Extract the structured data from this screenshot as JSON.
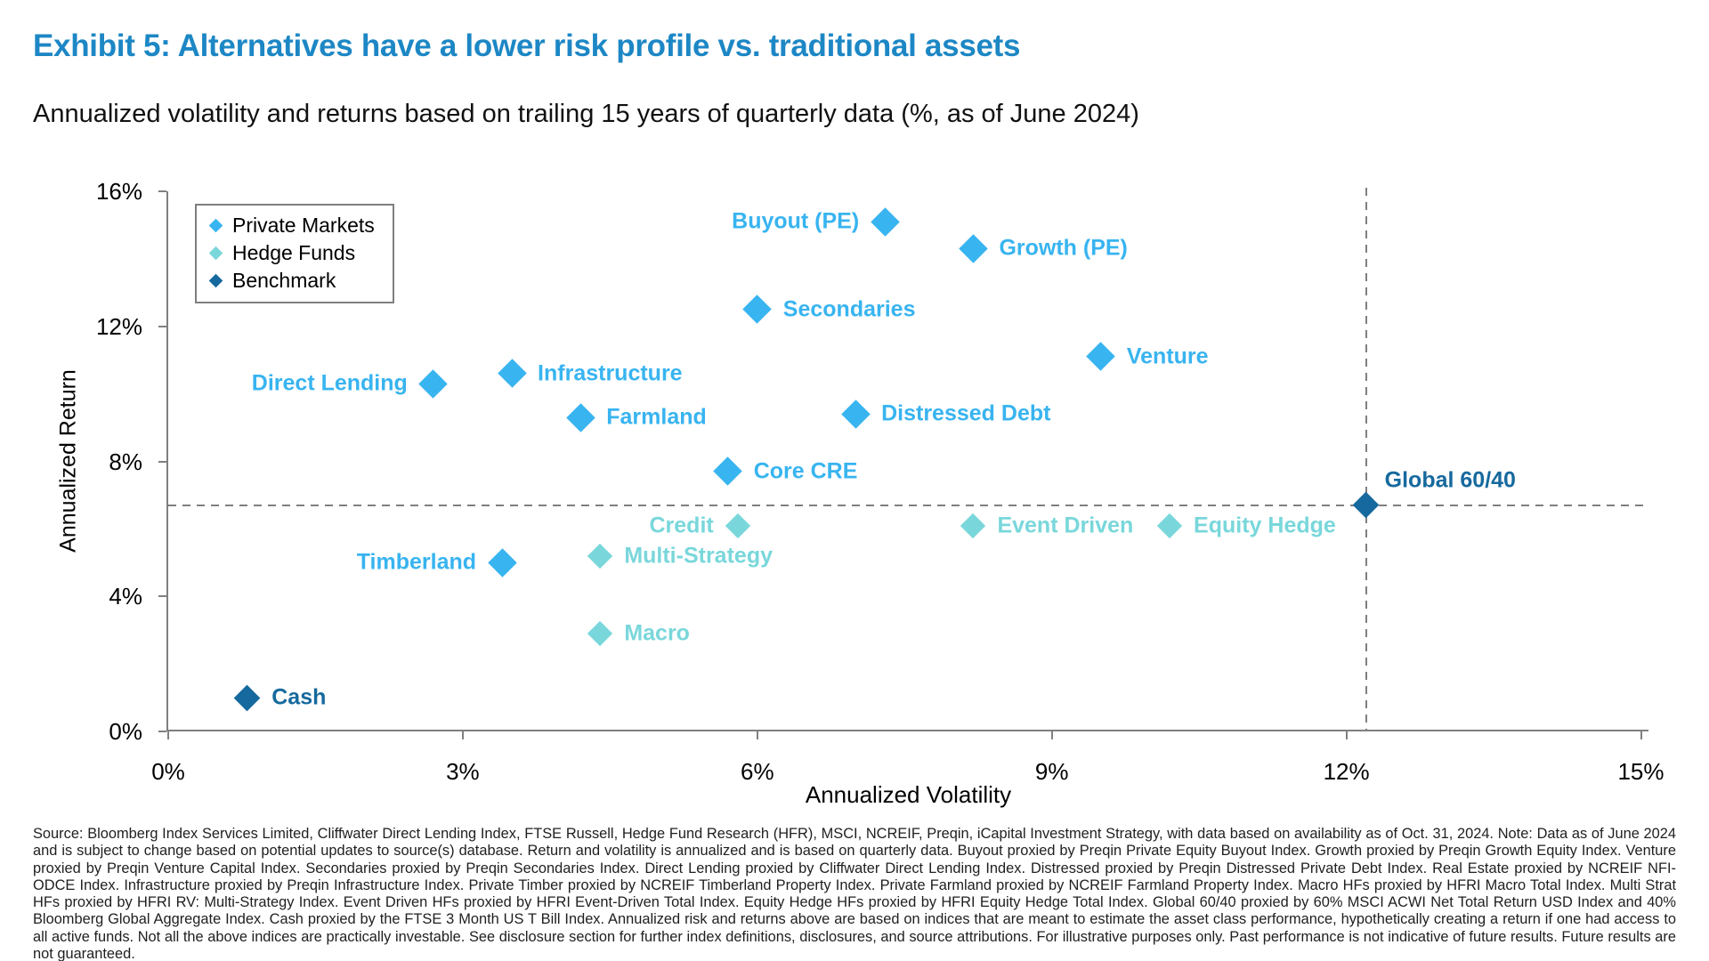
{
  "header": {
    "title": "Exhibit 5: Alternatives have a lower risk profile vs. traditional assets",
    "subtitle": "Annualized volatility and returns based on trailing 15 years of quarterly data (%, as of June 2024)"
  },
  "colors": {
    "title_blue": "#1d87c5",
    "private_markets": "#38b4f0",
    "hedge_funds": "#79d7db",
    "benchmark": "#16699e",
    "axis_gray": "#808080",
    "dashed_gray": "#7f7f7f"
  },
  "legend": {
    "items": [
      {
        "label": "Private Markets"
      },
      {
        "label": "Hedge Funds"
      },
      {
        "label": "Benchmark"
      }
    ]
  },
  "chart_data": {
    "type": "scatter",
    "title": "Exhibit 5: Alternatives have a lower risk profile vs. traditional assets",
    "subtitle": "Annualized volatility and returns based on trailing 15 years of quarterly data (%, as of June 2024)",
    "xlabel": "Annualized Volatility",
    "ylabel": "Annualized Return",
    "xlim": [
      0,
      15
    ],
    "ylim": [
      0,
      16
    ],
    "x_tick_values": [
      0,
      3,
      6,
      9,
      12,
      15
    ],
    "x_tick_labels": [
      "0%",
      "3%",
      "6%",
      "9%",
      "12%",
      "15%"
    ],
    "y_tick_values": [
      0,
      4,
      8,
      12,
      16
    ],
    "y_tick_labels": [
      "0%",
      "4%",
      "8%",
      "12%",
      "16%"
    ],
    "grid": false,
    "legend_position": "upper-left-inside",
    "reference_lines": {
      "horizontal_y": 6.7,
      "vertical_x": 12.2
    },
    "series": [
      {
        "name": "Private Markets",
        "color": "#38b4f0",
        "points": [
          {
            "label": "Buyout (PE)",
            "x": 7.3,
            "y": 15.1,
            "label_side": "left"
          },
          {
            "label": "Growth (PE)",
            "x": 8.2,
            "y": 14.3,
            "label_side": "right"
          },
          {
            "label": "Secondaries",
            "x": 6.0,
            "y": 12.5,
            "label_side": "right"
          },
          {
            "label": "Venture",
            "x": 9.5,
            "y": 11.1,
            "label_side": "right"
          },
          {
            "label": "Infrastructure",
            "x": 3.5,
            "y": 10.6,
            "label_side": "right"
          },
          {
            "label": "Direct Lending",
            "x": 2.7,
            "y": 10.3,
            "label_side": "left"
          },
          {
            "label": "Distressed Debt",
            "x": 7.0,
            "y": 9.4,
            "label_side": "right"
          },
          {
            "label": "Farmland",
            "x": 4.2,
            "y": 9.3,
            "label_side": "right"
          },
          {
            "label": "Core CRE",
            "x": 5.7,
            "y": 7.7,
            "label_side": "right"
          },
          {
            "label": "Timberland",
            "x": 3.4,
            "y": 5.0,
            "label_side": "left"
          }
        ]
      },
      {
        "name": "Hedge Funds",
        "color": "#79d7db",
        "points": [
          {
            "label": "Credit",
            "x": 5.8,
            "y": 6.1,
            "label_side": "left"
          },
          {
            "label": "Event Driven",
            "x": 8.2,
            "y": 6.1,
            "label_side": "right"
          },
          {
            "label": "Equity Hedge",
            "x": 10.2,
            "y": 6.1,
            "label_side": "right"
          },
          {
            "label": "Multi-Strategy",
            "x": 4.4,
            "y": 5.2,
            "label_side": "right"
          },
          {
            "label": "Macro",
            "x": 4.4,
            "y": 2.9,
            "label_side": "right"
          }
        ]
      },
      {
        "name": "Benchmark",
        "color": "#16699e",
        "points": [
          {
            "label": "Global 60/40",
            "x": 12.2,
            "y": 6.7,
            "label_side": "above-right"
          },
          {
            "label": "Cash",
            "x": 0.8,
            "y": 1.0,
            "label_side": "right"
          }
        ]
      }
    ]
  },
  "footer": {
    "text": "Source: Bloomberg Index Services Limited, Cliffwater Direct Lending Index, FTSE Russell, Hedge Fund Research (HFR), MSCI, NCREIF, Preqin, iCapital Investment Strategy, with data based on availability as of Oct. 31, 2024. Note: Data as of June 2024 and is subject to change based on potential updates to source(s) database. Return and volatility is annualized and is based on quarterly data. Buyout proxied by Preqin Private Equity Buyout Index. Growth proxied by Preqin Growth Equity Index. Venture proxied by Preqin Venture Capital Index. Secondaries proxied by Preqin Secondaries Index. Direct Lending proxied by Cliffwater Direct Lending Index. Distressed proxied by Preqin Distressed Private Debt Index. Real Estate proxied by NCREIF NFI-ODCE Index. Infrastructure proxied by Preqin Infrastructure Index. Private Timber proxied by NCREIF Timberland Property Index. Private Farmland proxied by NCREIF Farmland Property Index. Macro HFs proxied by HFRI Macro Total Index. Multi Strat HFs proxied by HFRI RV: Multi-Strategy Index. Event Driven HFs proxied by HFRI Event-Driven Total Index. Equity Hedge HFs proxied by HFRI Equity Hedge Total Index. Global 60/40 proxied by 60% MSCI ACWI Net Total Return USD Index and 40% Bloomberg Global Aggregate Index. Cash proxied by the FTSE 3 Month US T Bill Index. Annualized risk and returns above are based on indices that are meant to estimate the asset class performance, hypothetically creating a return if one had access to all active funds. Not all the above indices are practically investable. See disclosure section for further index definitions, disclosures, and source attributions. For illustrative purposes only. Past performance is not indicative of future results. Future results are not guaranteed."
  }
}
